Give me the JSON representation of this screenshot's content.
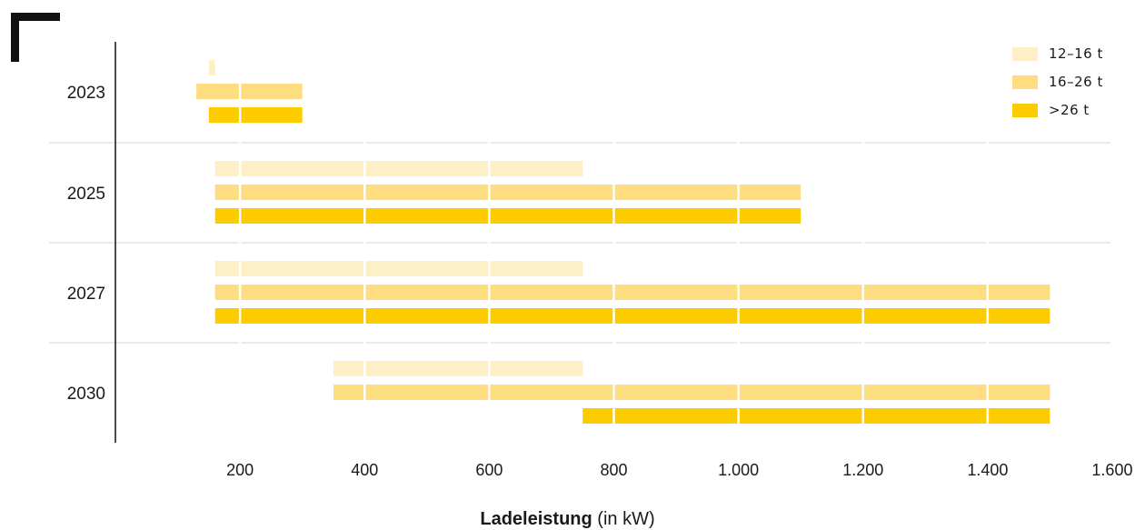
{
  "chart_data": {
    "type": "bar",
    "orientation": "horizontal-range",
    "title": "",
    "xlabel_bold": "Ladeleistung",
    "xlabel_rest": " (in kW)",
    "xlim": [
      0,
      1600
    ],
    "xticks": [
      200,
      400,
      600,
      800,
      1000,
      1200,
      1400,
      1600
    ],
    "xtick_labels": [
      "200",
      "400",
      "600",
      "800",
      "1.000",
      "1.200",
      "1.400",
      "1.600"
    ],
    "categories": [
      "2023",
      "2025",
      "2027",
      "2030"
    ],
    "series": [
      {
        "name": "12–16 t",
        "color": "#fdf0c6",
        "ranges": [
          [
            150,
            160
          ],
          [
            160,
            750
          ],
          [
            160,
            750
          ],
          [
            350,
            750
          ]
        ]
      },
      {
        "name": "16–26 t",
        "color": "#fddd7f",
        "ranges": [
          [
            130,
            300
          ],
          [
            160,
            1100
          ],
          [
            160,
            1500
          ],
          [
            350,
            1500
          ]
        ]
      },
      {
        "name": ">26 t",
        "color": "#fccc00",
        "ranges": [
          [
            150,
            300
          ],
          [
            160,
            1100
          ],
          [
            160,
            1500
          ],
          [
            750,
            1500
          ]
        ]
      }
    ]
  }
}
